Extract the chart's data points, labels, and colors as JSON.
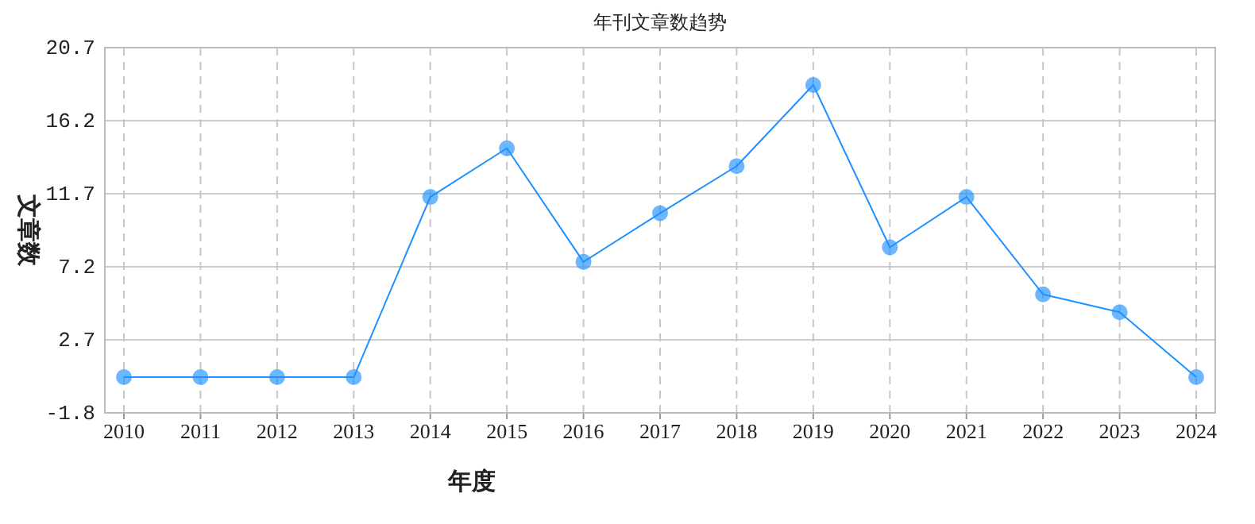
{
  "chart_data": {
    "type": "line",
    "title": "年刊文章数趋势",
    "xlabel": "年度",
    "ylabel": "文章数",
    "categories": [
      "2010",
      "2011",
      "2012",
      "2013",
      "2014",
      "2015",
      "2016",
      "2017",
      "2018",
      "2019",
      "2020",
      "2021",
      "2022",
      "2023",
      "2024"
    ],
    "series": [
      {
        "color": "#1e90ff",
        "values": [
          0.4,
          0.4,
          0.4,
          0.4,
          11.5,
          14.5,
          7.5,
          10.5,
          13.4,
          18.4,
          8.4,
          11.5,
          5.5,
          4.4,
          0.4
        ]
      }
    ],
    "ylim": [
      -1.8,
      20.7
    ],
    "yticks": [
      -1.8,
      2.7,
      7.2,
      11.7,
      16.2,
      20.7
    ],
    "grid": true,
    "marker": "circle",
    "line_style": "solid"
  }
}
